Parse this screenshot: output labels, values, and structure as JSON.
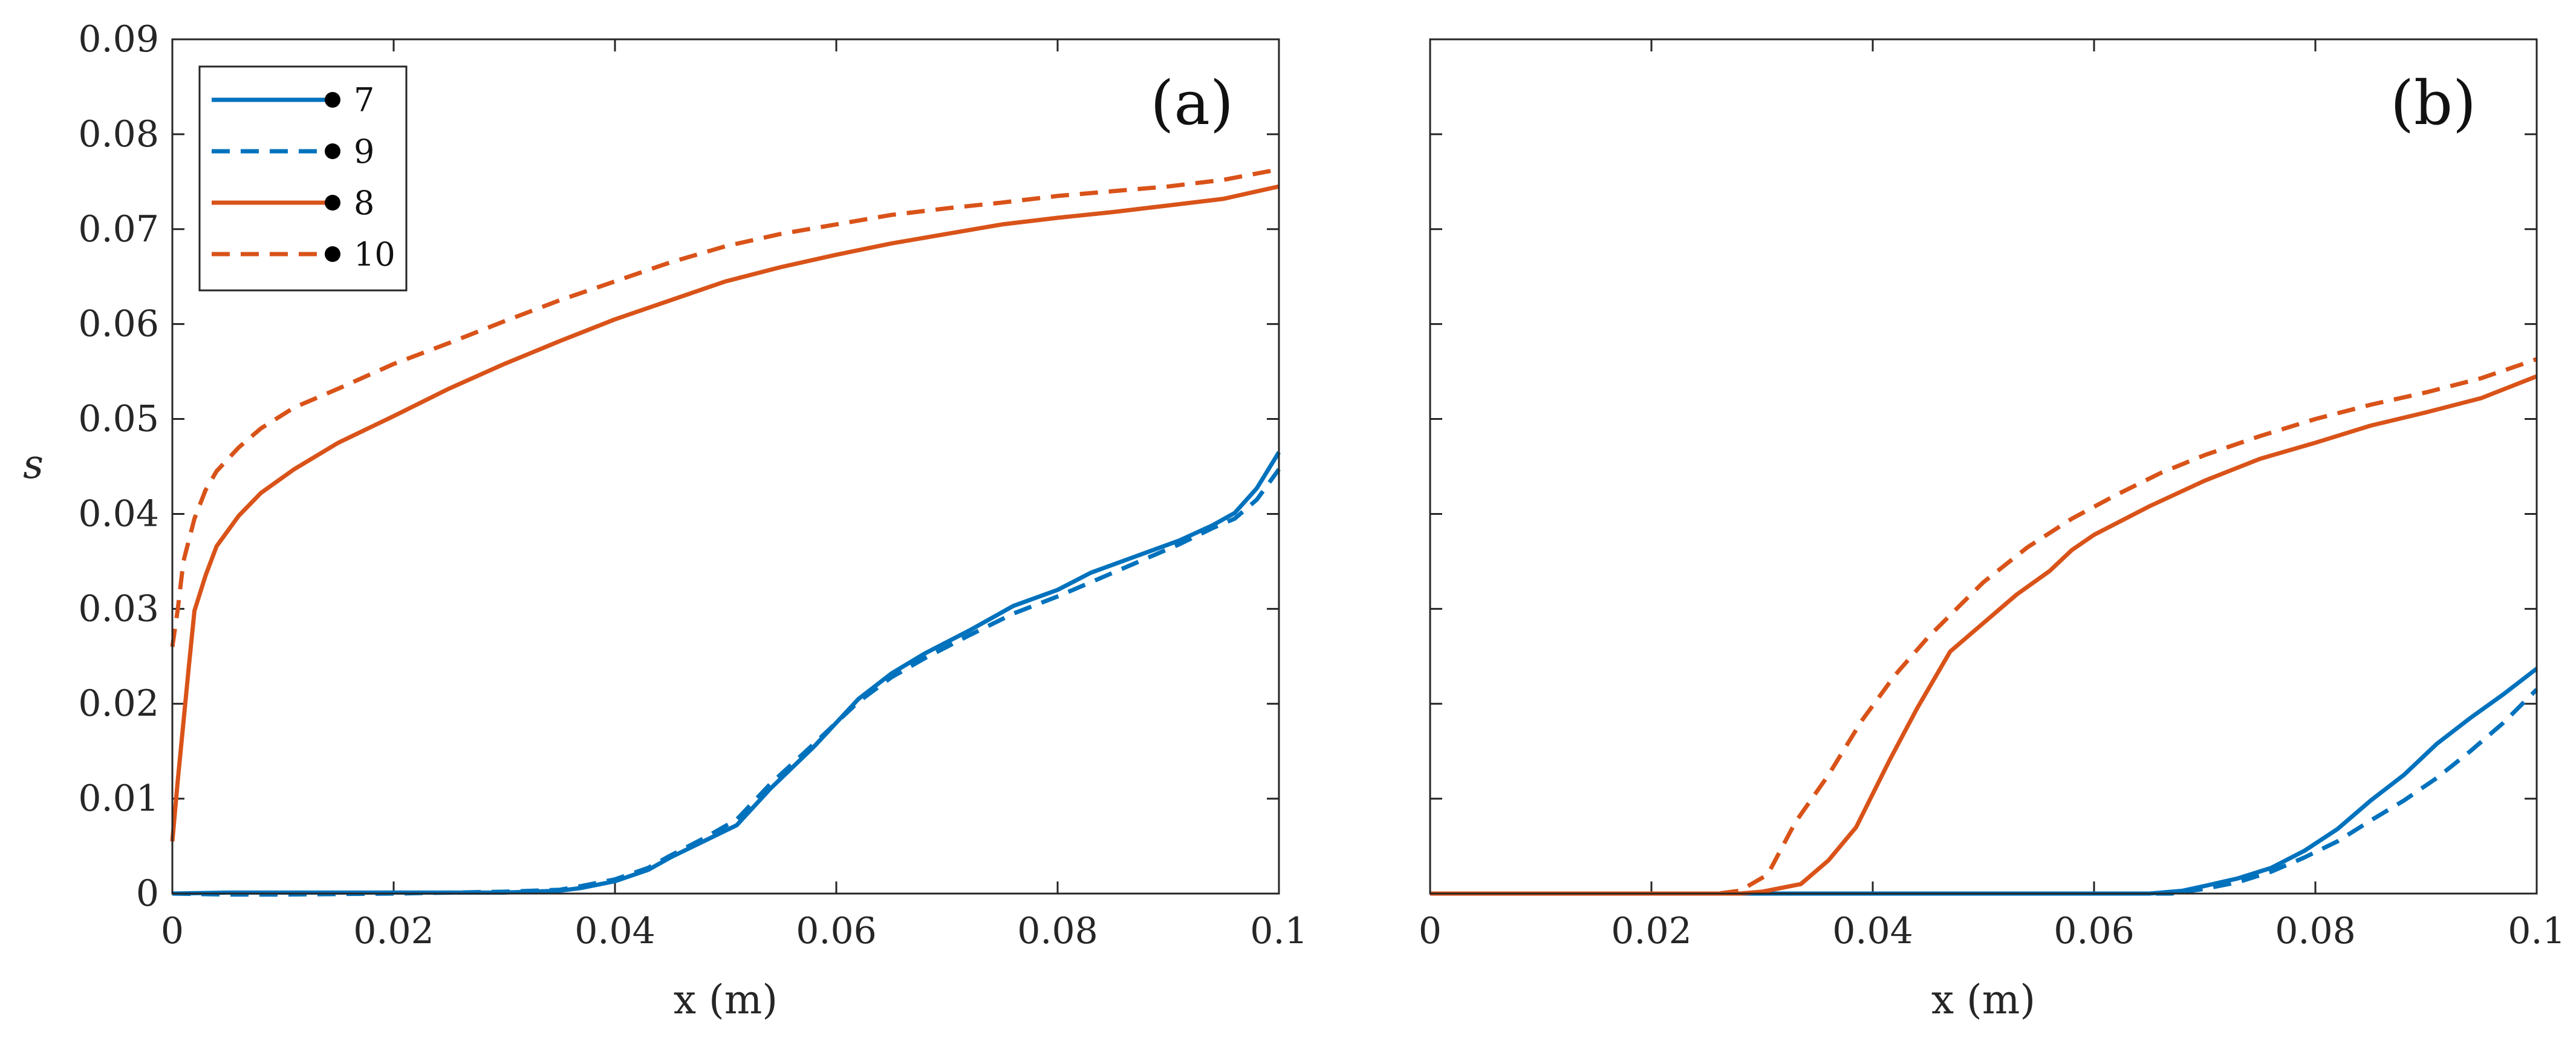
{
  "chart_data": [
    {
      "type": "line",
      "panel_label": "(a)",
      "xlabel": "x (m)",
      "ylabel": "s",
      "xlim": [
        0,
        0.1
      ],
      "ylim": [
        0,
        0.09
      ],
      "xticks": [
        0,
        0.02,
        0.04,
        0.06,
        0.08,
        0.1
      ],
      "xtick_labels": [
        "0",
        "0.02",
        "0.04",
        "0.06",
        "0.08",
        "0.1"
      ],
      "yticks": [
        0,
        0.01,
        0.02,
        0.03,
        0.04,
        0.05,
        0.06,
        0.07,
        0.08,
        0.09
      ],
      "ytick_labels": [
        "0",
        "0.01",
        "0.02",
        "0.03",
        "0.04",
        "0.05",
        "0.06",
        "0.07",
        "0.08",
        "0.09"
      ],
      "legend": {
        "placement": "top-left",
        "entries": [
          {
            "label": "7",
            "series": 0
          },
          {
            "label": "9",
            "series": 1
          },
          {
            "label": "8",
            "series": 2
          },
          {
            "label": "10",
            "series": 3
          }
        ]
      },
      "series": [
        {
          "name": "7",
          "color": "#0072BD",
          "style": "solid",
          "x": [
            0,
            0.005,
            0.01,
            0.02,
            0.03,
            0.035,
            0.037,
            0.04,
            0.043,
            0.045,
            0.048,
            0.051,
            0.054,
            0.058,
            0.062,
            0.065,
            0.068,
            0.072,
            0.076,
            0.08,
            0.083,
            0.087,
            0.091,
            0.094,
            0.096,
            0.098,
            0.1
          ],
          "y": [
            0,
            0.0001,
            0.0001,
            0.0001,
            0.0001,
            0.0003,
            0.0006,
            0.0013,
            0.0025,
            0.0038,
            0.0055,
            0.0072,
            0.011,
            0.0155,
            0.0205,
            0.0232,
            0.0253,
            0.0277,
            0.0303,
            0.032,
            0.0338,
            0.0355,
            0.0372,
            0.0388,
            0.0401,
            0.0427,
            0.0465
          ]
        },
        {
          "name": "9",
          "color": "#0072BD",
          "style": "dashed",
          "x": [
            0,
            0.005,
            0.01,
            0.02,
            0.03,
            0.035,
            0.037,
            0.04,
            0.043,
            0.045,
            0.048,
            0.051,
            0.054,
            0.058,
            0.062,
            0.065,
            0.068,
            0.072,
            0.076,
            0.08,
            0.083,
            0.087,
            0.091,
            0.094,
            0.096,
            0.098,
            0.1
          ],
          "y": [
            0,
            -0.0001,
            -0.0001,
            0,
            0.0002,
            0.0004,
            0.0008,
            0.0015,
            0.0027,
            0.004,
            0.0058,
            0.0078,
            0.0115,
            0.0158,
            0.0202,
            0.0228,
            0.0248,
            0.0272,
            0.0295,
            0.0313,
            0.0328,
            0.0348,
            0.0368,
            0.0385,
            0.0395,
            0.0415,
            0.0447
          ]
        },
        {
          "name": "8",
          "color": "#D95319",
          "style": "solid",
          "x": [
            0,
            0.0005,
            0.001,
            0.0015,
            0.002,
            0.003,
            0.004,
            0.006,
            0.008,
            0.011,
            0.015,
            0.02,
            0.025,
            0.03,
            0.035,
            0.04,
            0.045,
            0.05,
            0.055,
            0.06,
            0.065,
            0.07,
            0.075,
            0.08,
            0.085,
            0.09,
            0.095,
            0.1
          ],
          "y": [
            0.0055,
            0.012,
            0.018,
            0.024,
            0.0298,
            0.0335,
            0.0366,
            0.0398,
            0.0422,
            0.0447,
            0.0475,
            0.0503,
            0.0532,
            0.0558,
            0.0582,
            0.0605,
            0.0625,
            0.0645,
            0.066,
            0.0673,
            0.0685,
            0.0695,
            0.0705,
            0.0712,
            0.0718,
            0.0725,
            0.0732,
            0.0745
          ]
        },
        {
          "name": "10",
          "color": "#D95319",
          "style": "dashed",
          "x": [
            0,
            0.0005,
            0.001,
            0.002,
            0.003,
            0.004,
            0.006,
            0.008,
            0.011,
            0.015,
            0.02,
            0.025,
            0.03,
            0.035,
            0.04,
            0.045,
            0.05,
            0.055,
            0.06,
            0.065,
            0.07,
            0.075,
            0.08,
            0.085,
            0.09,
            0.095,
            0.1
          ],
          "y": [
            0.026,
            0.03,
            0.035,
            0.0395,
            0.0425,
            0.0445,
            0.047,
            0.049,
            0.0512,
            0.0532,
            0.0558,
            0.058,
            0.0603,
            0.0625,
            0.0645,
            0.0665,
            0.0682,
            0.0695,
            0.0705,
            0.0715,
            0.0722,
            0.0728,
            0.0735,
            0.074,
            0.0745,
            0.0752,
            0.0763
          ]
        }
      ]
    },
    {
      "type": "line",
      "panel_label": "(b)",
      "xlabel": "x (m)",
      "xlim": [
        0,
        0.1
      ],
      "ylim": [
        0,
        0.09
      ],
      "xticks": [
        0,
        0.02,
        0.04,
        0.06,
        0.08,
        0.1
      ],
      "xtick_labels": [
        "0",
        "0.02",
        "0.04",
        "0.06",
        "0.08",
        "0.1"
      ],
      "yticks": [
        0,
        0.01,
        0.02,
        0.03,
        0.04,
        0.05,
        0.06,
        0.07,
        0.08,
        0.09
      ],
      "series": [
        {
          "name": "7",
          "color": "#0072BD",
          "style": "solid",
          "x": [
            0,
            0.065,
            0.068,
            0.07,
            0.073,
            0.076,
            0.079,
            0.082,
            0.085,
            0.088,
            0.091,
            0.094,
            0.097,
            0.1
          ],
          "y": [
            0,
            0,
            0.0003,
            0.0008,
            0.0016,
            0.0027,
            0.0045,
            0.0068,
            0.0098,
            0.0125,
            0.0158,
            0.0185,
            0.021,
            0.0237
          ]
        },
        {
          "name": "9",
          "color": "#0072BD",
          "style": "dashed",
          "x": [
            0,
            0.067,
            0.07,
            0.073,
            0.076,
            0.079,
            0.082,
            0.085,
            0.088,
            0.091,
            0.094,
            0.097,
            0.1
          ],
          "y": [
            0,
            0,
            0.0005,
            0.0012,
            0.0023,
            0.0038,
            0.0055,
            0.0077,
            0.0098,
            0.0122,
            0.015,
            0.018,
            0.0215
          ]
        },
        {
          "name": "8",
          "color": "#D95319",
          "style": "solid",
          "x": [
            0,
            0.028,
            0.03,
            0.0335,
            0.036,
            0.0385,
            0.0415,
            0.044,
            0.047,
            0.05,
            0.053,
            0.056,
            0.058,
            0.06,
            0.065,
            0.07,
            0.075,
            0.08,
            0.085,
            0.09,
            0.095,
            0.1
          ],
          "y": [
            0,
            0,
            0.0002,
            0.001,
            0.0035,
            0.007,
            0.014,
            0.0195,
            0.0255,
            0.0285,
            0.0315,
            0.034,
            0.0362,
            0.0378,
            0.0408,
            0.0435,
            0.0458,
            0.0475,
            0.0493,
            0.0507,
            0.0522,
            0.0545
          ]
        },
        {
          "name": "10",
          "color": "#D95319",
          "style": "dashed",
          "x": [
            0,
            0.026,
            0.028,
            0.0305,
            0.033,
            0.036,
            0.039,
            0.042,
            0.045,
            0.048,
            0.05,
            0.054,
            0.058,
            0.062,
            0.066,
            0.07,
            0.075,
            0.08,
            0.085,
            0.09,
            0.095,
            0.1
          ],
          "y": [
            0,
            0,
            0.0003,
            0.002,
            0.0075,
            0.0125,
            0.0182,
            0.023,
            0.027,
            0.0305,
            0.0328,
            0.0365,
            0.0395,
            0.042,
            0.0443,
            0.0462,
            0.0482,
            0.05,
            0.0515,
            0.0528,
            0.0543,
            0.0563
          ]
        }
      ]
    }
  ]
}
